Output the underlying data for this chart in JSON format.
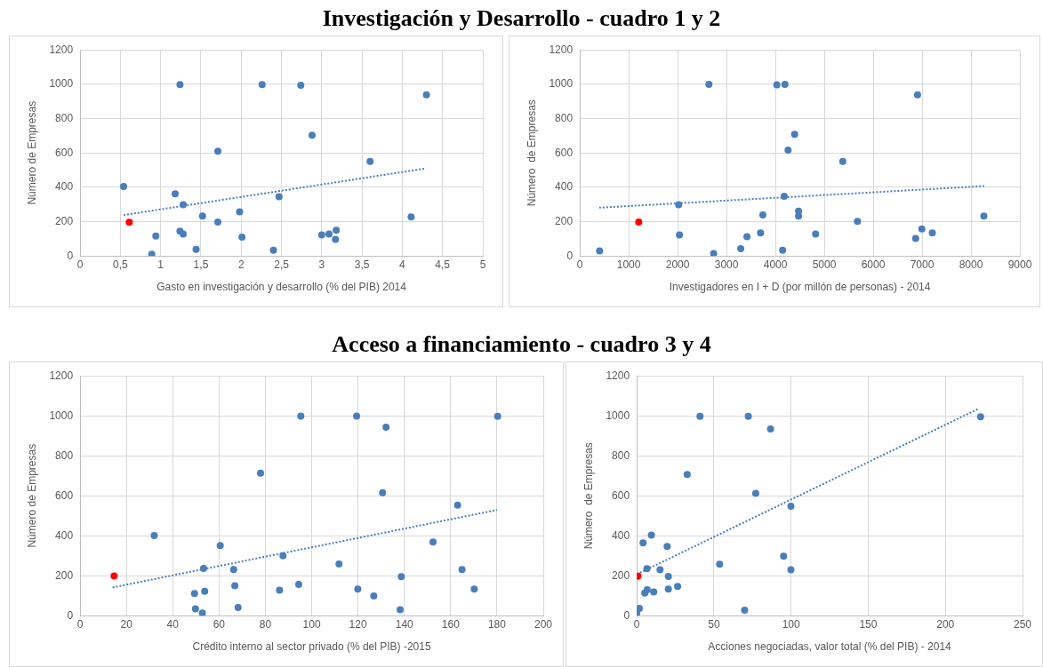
{
  "chart_data": [
    {
      "type": "scatter",
      "title": "Investigación y Desarrollo - cuadro 1 y 2",
      "xlabel": "Gasto en investigación y desarrollo (% del PIB) 2014",
      "ylabel": "Número de Empresas",
      "xlim": [
        0,
        5
      ],
      "xticks": [
        0,
        {
          "value": 0.5,
          "label": "0,5"
        },
        1,
        {
          "value": 1.5,
          "label": "1,5"
        },
        2,
        {
          "value": 2.5,
          "label": "2,5"
        },
        3,
        {
          "value": 3.5,
          "label": "3,5"
        },
        4,
        {
          "value": 4.5,
          "label": "4,5"
        },
        5
      ],
      "ylim": [
        0,
        1200
      ],
      "yticks": [
        0,
        200,
        400,
        600,
        800,
        1000,
        1200
      ],
      "grid": true,
      "legend": false,
      "marker": "circle",
      "series": [
        {
          "color": "#4a7ebb",
          "x": [
            0.54,
            0.94,
            0.89,
            1.18,
            1.24,
            1.28,
            1.24,
            1.28,
            1.44,
            1.52,
            1.71,
            1.71,
            1.98,
            2.01,
            2.26,
            2.4,
            2.47,
            2.74,
            2.88,
            3.0,
            3.09,
            3.17,
            3.18,
            3.6,
            4.11,
            4.3
          ],
          "values": [
            404,
            116,
            10,
            362,
            998,
            299,
            145,
            128,
            38,
            232,
            610,
            198,
            257,
            110,
            998,
            34,
            345,
            994,
            703,
            122,
            128,
            97,
            150,
            550,
            227,
            939
          ]
        },
        {
          "color": "#ff0000",
          "x": [
            0.61
          ],
          "values": [
            196
          ]
        },
        {
          "type": "line",
          "color": "#4a7ebb",
          "line_style": "dotted",
          "marker": "none",
          "x": [
            0.54,
            4.28
          ],
          "values": [
            238,
            509
          ]
        }
      ]
    },
    {
      "type": "scatter",
      "xlabel": "Investigadores en I + D (por millón de personas) - 2014",
      "ylabel": "Número  de Empresas",
      "xlim": [
        0,
        9000
      ],
      "xticks": [
        0,
        1000,
        2000,
        3000,
        4000,
        5000,
        6000,
        7000,
        8000,
        9000
      ],
      "ylim": [
        0,
        1200
      ],
      "yticks": [
        0,
        200,
        400,
        600,
        800,
        1000,
        1200
      ],
      "grid": true,
      "legend": false,
      "marker": "circle",
      "series": [
        {
          "color": "#4a7ebb",
          "x": [
            404,
            2022,
            2038,
            2641,
            2736,
            3291,
            3418,
            3696,
            3743,
            4029,
            4195,
            4148,
            4180,
            4259,
            4393,
            4473,
            4473,
            4822,
            5377,
            5678,
            6868,
            6907,
            6995,
            7209,
            8263
          ],
          "values": [
            30,
            299,
            122,
            999,
            14,
            42,
            112,
            134,
            239,
            997,
            999,
            34,
            347,
            616,
            708,
            261,
            233,
            128,
            550,
            201,
            102,
            939,
            157,
            134,
            233
          ]
        },
        {
          "color": "#ff0000",
          "x": [
            1205
          ],
          "values": [
            197
          ]
        },
        {
          "type": "line",
          "color": "#4a7ebb",
          "line_style": "dotted",
          "marker": "none",
          "x": [
            396,
            8271
          ],
          "values": [
            281,
            407
          ]
        }
      ]
    },
    {
      "type": "scatter",
      "title": "Acceso a financiamiento - cuadro 3 y 4",
      "xlabel": "Crédito interno al sector privado (% del PIB) -2015",
      "ylabel": "Número de Empresas",
      "xlim": [
        0,
        200
      ],
      "xticks": [
        0,
        20,
        40,
        60,
        80,
        100,
        120,
        140,
        160,
        180,
        200
      ],
      "ylim": [
        0,
        1200
      ],
      "yticks": [
        0,
        200,
        400,
        600,
        800,
        1000,
        1200
      ],
      "grid": true,
      "legend": false,
      "marker": "circle",
      "series": [
        {
          "color": "#4a7ebb",
          "x": [
            32.0,
            49.4,
            49.8,
            52.8,
            53.3,
            53.8,
            60.5,
            66.3,
            66.8,
            68.2,
            77.9,
            86.1,
            87.6,
            94.4,
            95.3,
            111.8,
            119.4,
            119.9,
            126.8,
            130.6,
            132.1,
            138.2,
            138.7,
            152.4,
            163.0,
            164.9,
            170.2,
            180.3
          ],
          "values": [
            401,
            111,
            34,
            13,
            236,
            122,
            351,
            231,
            150,
            41,
            713,
            128,
            300,
            156,
            999,
            259,
            999,
            133,
            99,
            615,
            943,
            30,
            195,
            369,
            553,
            231,
            133,
            998
          ]
        },
        {
          "color": "#ff0000",
          "x": [
            14.7
          ],
          "values": [
            199
          ]
        },
        {
          "type": "line",
          "color": "#4a7ebb",
          "line_style": "dotted",
          "marker": "none",
          "x": [
            14,
            180
          ],
          "values": [
            141,
            529
          ]
        }
      ]
    },
    {
      "type": "scatter",
      "xlabel": "Acciones negociadas, valor total (% del PIB) - 2014",
      "ylabel": "Número  de Empresas",
      "xlim": [
        0,
        250
      ],
      "xticks": [
        0,
        50,
        100,
        150,
        200,
        250
      ],
      "ylim": [
        0,
        1200
      ],
      "yticks": [
        0,
        200,
        400,
        600,
        800,
        1000,
        1200
      ],
      "grid": true,
      "legend": false,
      "marker": "circle",
      "series": [
        {
          "color": "#4a7ebb",
          "x": [
            0,
            1.7,
            4.1,
            5.2,
            6.6,
            6.8,
            9.5,
            11.0,
            15.1,
            19.7,
            20.5,
            20.5,
            26.5,
            32.7,
            41.0,
            53.7,
            69.9,
            72.3,
            77.1,
            86.7,
            95.2,
            99.9,
            99.9,
            222.8
          ],
          "values": [
            12,
            36,
            364,
            113,
            235,
            130,
            403,
            119,
            230,
            346,
            196,
            133,
            147,
            707,
            998,
            258,
            28,
            998,
            612,
            934,
            298,
            548,
            230,
            995
          ]
        },
        {
          "color": "#ff0000",
          "x": [
            0.8
          ],
          "values": [
            198
          ]
        },
        {
          "type": "line",
          "color": "#4a7ebb",
          "line_style": "dotted",
          "marker": "none",
          "x": [
            0,
            221.6
          ],
          "values": [
            207,
            1036
          ]
        }
      ]
    }
  ]
}
